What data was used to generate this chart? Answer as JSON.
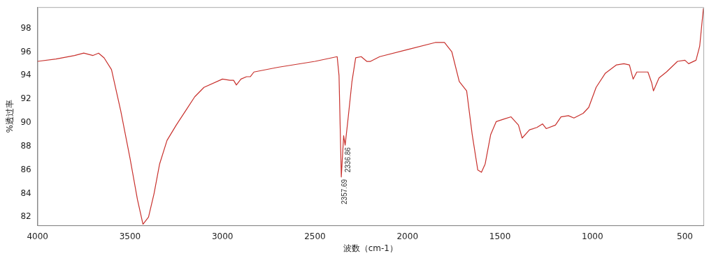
{
  "chart_data": {
    "type": "line",
    "xlabel": "波数（cm-1）",
    "ylabel": "%透过率",
    "xlim": [
      4000,
      400
    ],
    "ylim": [
      81.3,
      99.8
    ],
    "xticks": [
      4000,
      3500,
      3000,
      2500,
      2000,
      1500,
      1000,
      500
    ],
    "yticks": [
      82,
      84,
      86,
      88,
      90,
      92,
      94,
      96,
      98
    ],
    "grid": false,
    "legend": false,
    "marker": "none",
    "line_style": "solid",
    "annotations": [
      {
        "text": "2357.69",
        "x": 2357.69,
        "y": 85.4
      },
      {
        "text": "2336.86",
        "x": 2336.86,
        "y": 88.1
      }
    ],
    "series": [
      {
        "color": "#c8302c",
        "x": [
          4000,
          3900,
          3800,
          3750,
          3700,
          3670,
          3640,
          3600,
          3550,
          3500,
          3460,
          3430,
          3400,
          3370,
          3340,
          3300,
          3250,
          3200,
          3150,
          3100,
          3000,
          2960,
          2940,
          2925,
          2900,
          2870,
          2850,
          2830,
          2700,
          2500,
          2380,
          2370,
          2357.69,
          2345,
          2336.86,
          2320,
          2300,
          2280,
          2250,
          2220,
          2200,
          2150,
          2000,
          1850,
          1800,
          1760,
          1720,
          1680,
          1650,
          1620,
          1600,
          1580,
          1550,
          1520,
          1480,
          1440,
          1400,
          1380,
          1340,
          1300,
          1270,
          1250,
          1200,
          1170,
          1130,
          1100,
          1050,
          1020,
          980,
          930,
          870,
          830,
          800,
          780,
          760,
          700,
          680,
          670,
          640,
          600,
          540,
          500,
          480,
          440,
          420,
          400
        ],
        "values": [
          95.2,
          95.4,
          95.7,
          95.9,
          95.7,
          95.9,
          95.5,
          94.5,
          91,
          87,
          83.5,
          81.4,
          82,
          84,
          86.5,
          88.5,
          89.8,
          91,
          92.2,
          93,
          93.7,
          93.6,
          93.6,
          93.2,
          93.7,
          93.9,
          93.9,
          94.3,
          94.7,
          95.2,
          95.6,
          94,
          85.4,
          88.9,
          88.1,
          90.5,
          93.5,
          95.5,
          95.6,
          95.2,
          95.2,
          95.6,
          96.2,
          96.8,
          96.8,
          96,
          93.5,
          92.7,
          89,
          86,
          85.8,
          86.5,
          89,
          90.1,
          90.3,
          90.5,
          89.8,
          88.7,
          89.4,
          89.6,
          89.9,
          89.5,
          89.8,
          90.5,
          90.6,
          90.4,
          90.8,
          91.3,
          93,
          94.2,
          94.9,
          95,
          94.9,
          93.7,
          94.3,
          94.3,
          93.4,
          92.7,
          93.8,
          94.3,
          95.2,
          95.3,
          95,
          95.3,
          96.5,
          99.7
        ]
      }
    ]
  }
}
